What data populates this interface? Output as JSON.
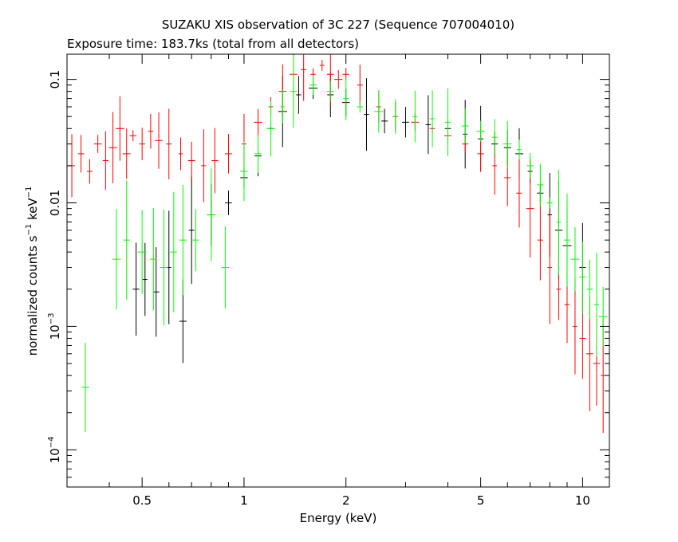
{
  "chart_data": {
    "type": "scatter",
    "title": "SUZAKU XIS observation of 3C 227 (Sequence 707004010)",
    "subtitle": "Exposure time: 183.7ks (total from all detectors)",
    "xlabel": "Energy (keV)",
    "ylabel_main": "normalized counts s",
    "ylabel_exp1": "−1",
    "ylabel_mid": " keV",
    "ylabel_exp2": "−1",
    "x_scale": "log",
    "y_scale": "log",
    "xlim": [
      0.3,
      12
    ],
    "ylim": [
      5e-05,
      0.16
    ],
    "x_ticks": [
      {
        "value": 0.5,
        "label": "0.5"
      },
      {
        "value": 1,
        "label": "1"
      },
      {
        "value": 2,
        "label": "2"
      },
      {
        "value": 5,
        "label": "5"
      },
      {
        "value": 10,
        "label": "10"
      }
    ],
    "y_ticks": [
      {
        "value": 0.1,
        "label": "0.1",
        "base": "",
        "exp": ""
      },
      {
        "value": 0.01,
        "label": "0.01",
        "base": "",
        "exp": ""
      },
      {
        "value": 0.001,
        "label": "",
        "base": "10",
        "exp": "−3"
      },
      {
        "value": 0.0001,
        "label": "",
        "base": "10",
        "exp": "−4"
      }
    ],
    "series": [
      {
        "color": "#000000",
        "points": [
          [
            0.48,
            0.002
          ],
          [
            0.51,
            0.0024
          ],
          [
            0.55,
            0.0019
          ],
          [
            0.6,
            0.003
          ],
          [
            0.66,
            0.0011
          ],
          [
            0.7,
            0.006
          ],
          [
            0.8,
            0.008
          ],
          [
            0.9,
            0.01
          ],
          [
            1.0,
            0.016
          ],
          [
            1.1,
            0.024
          ],
          [
            1.2,
            0.04
          ],
          [
            1.3,
            0.055
          ],
          [
            1.45,
            0.075
          ],
          [
            1.6,
            0.085
          ],
          [
            1.8,
            0.075
          ],
          [
            2.0,
            0.065
          ],
          [
            2.3,
            0.052
          ],
          [
            2.6,
            0.046
          ],
          [
            3.0,
            0.045
          ],
          [
            3.5,
            0.043
          ],
          [
            4.0,
            0.04
          ],
          [
            4.5,
            0.036
          ],
          [
            5.0,
            0.033
          ],
          [
            5.5,
            0.03
          ],
          [
            6.0,
            0.028
          ],
          [
            6.5,
            0.025
          ],
          [
            7.0,
            0.018
          ],
          [
            7.5,
            0.012
          ],
          [
            8.0,
            0.008
          ],
          [
            8.5,
            0.006
          ],
          [
            9.0,
            0.0045
          ],
          [
            10.0,
            0.003
          ]
        ]
      },
      {
        "color": "#ff0000",
        "points": [
          [
            0.31,
            0.02
          ],
          [
            0.33,
            0.025
          ],
          [
            0.35,
            0.018
          ],
          [
            0.37,
            0.03
          ],
          [
            0.39,
            0.022
          ],
          [
            0.41,
            0.028
          ],
          [
            0.43,
            0.04
          ],
          [
            0.45,
            0.025
          ],
          [
            0.47,
            0.035
          ],
          [
            0.5,
            0.03
          ],
          [
            0.53,
            0.038
          ],
          [
            0.56,
            0.032
          ],
          [
            0.6,
            0.03
          ],
          [
            0.65,
            0.025
          ],
          [
            0.7,
            0.022
          ],
          [
            0.76,
            0.02
          ],
          [
            0.82,
            0.022
          ],
          [
            0.9,
            0.025
          ],
          [
            1.0,
            0.03
          ],
          [
            1.1,
            0.045
          ],
          [
            1.2,
            0.06
          ],
          [
            1.3,
            0.08
          ],
          [
            1.4,
            0.11
          ],
          [
            1.5,
            0.12
          ],
          [
            1.6,
            0.11
          ],
          [
            1.7,
            0.13
          ],
          [
            1.8,
            0.11
          ],
          [
            1.9,
            0.1
          ],
          [
            2.0,
            0.11
          ],
          [
            2.2,
            0.09
          ],
          [
            2.5,
            0.06
          ],
          [
            2.8,
            0.05
          ],
          [
            3.2,
            0.045
          ],
          [
            3.6,
            0.04
          ],
          [
            4.0,
            0.035
          ],
          [
            4.5,
            0.03
          ],
          [
            5.0,
            0.025
          ],
          [
            5.5,
            0.02
          ],
          [
            6.0,
            0.016
          ],
          [
            6.5,
            0.012
          ],
          [
            7.0,
            0.009
          ],
          [
            7.5,
            0.005
          ],
          [
            8.0,
            0.003
          ],
          [
            8.5,
            0.002
          ],
          [
            9.0,
            0.0015
          ],
          [
            9.5,
            0.001
          ],
          [
            10.0,
            0.0008
          ],
          [
            10.5,
            0.0006
          ],
          [
            11.0,
            0.0005
          ],
          [
            11.5,
            0.0004
          ]
        ]
      },
      {
        "color": "#00ff00",
        "points": [
          [
            0.34,
            0.00032
          ],
          [
            0.42,
            0.0035
          ],
          [
            0.45,
            0.005
          ],
          [
            0.5,
            0.004
          ],
          [
            0.54,
            0.0035
          ],
          [
            0.58,
            0.003
          ],
          [
            0.62,
            0.004
          ],
          [
            0.66,
            0.005
          ],
          [
            0.72,
            0.005
          ],
          [
            0.8,
            0.008
          ],
          [
            0.88,
            0.003
          ],
          [
            1.0,
            0.018
          ],
          [
            1.1,
            0.025
          ],
          [
            1.2,
            0.04
          ],
          [
            1.3,
            0.06
          ],
          [
            1.4,
            0.08
          ],
          [
            1.6,
            0.09
          ],
          [
            1.8,
            0.08
          ],
          [
            2.0,
            0.07
          ],
          [
            2.2,
            0.06
          ],
          [
            2.5,
            0.055
          ],
          [
            2.8,
            0.05
          ],
          [
            3.2,
            0.05
          ],
          [
            3.6,
            0.048
          ],
          [
            4.0,
            0.045
          ],
          [
            4.5,
            0.042
          ],
          [
            5.0,
            0.038
          ],
          [
            5.5,
            0.034
          ],
          [
            6.0,
            0.03
          ],
          [
            6.5,
            0.027
          ],
          [
            7.0,
            0.02
          ],
          [
            7.5,
            0.014
          ],
          [
            8.0,
            0.01
          ],
          [
            8.5,
            0.007
          ],
          [
            9.0,
            0.005
          ],
          [
            9.5,
            0.0035
          ],
          [
            10.0,
            0.0025
          ],
          [
            10.5,
            0.002
          ],
          [
            11.0,
            0.0015
          ],
          [
            11.5,
            0.0012
          ]
        ]
      }
    ]
  }
}
